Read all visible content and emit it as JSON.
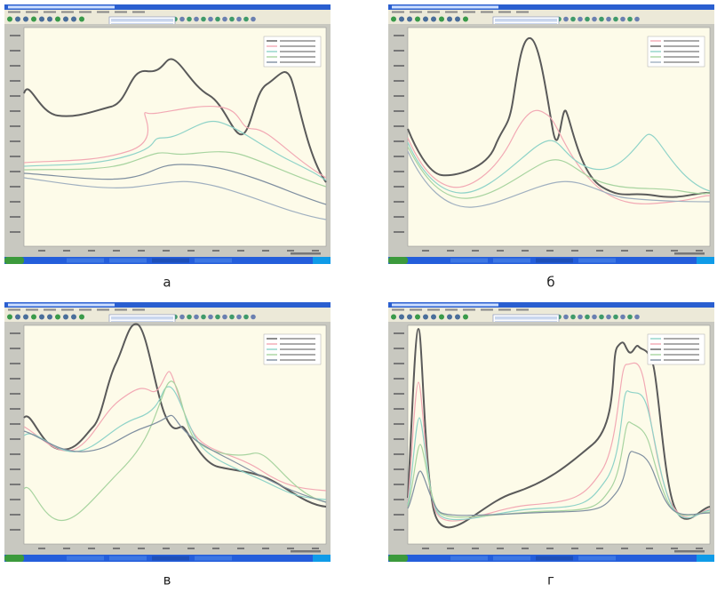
{
  "panels": [
    {
      "label": "а"
    },
    {
      "label": "б"
    },
    {
      "label": "в"
    },
    {
      "label": "г"
    }
  ]
}
